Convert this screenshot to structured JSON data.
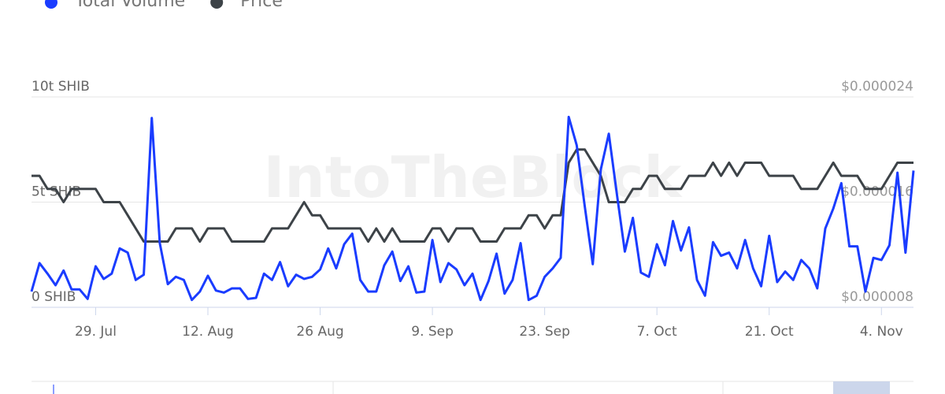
{
  "chart_data": {
    "type": "line",
    "watermark": "IntoTheBlock",
    "categories": [
      null,
      null,
      null,
      null,
      null,
      null,
      null,
      null,
      "29. Jul",
      null,
      null,
      null,
      null,
      null,
      null,
      null,
      null,
      null,
      null,
      null,
      null,
      null,
      "12. Aug",
      null,
      null,
      null,
      null,
      null,
      null,
      null,
      null,
      null,
      null,
      null,
      null,
      null,
      "26 Aug",
      null,
      null,
      null,
      null,
      null,
      null,
      null,
      null,
      null,
      null,
      null,
      null,
      null,
      "9. Sep",
      null,
      null,
      null,
      null,
      null,
      null,
      null,
      null,
      null,
      null,
      null,
      null,
      null,
      "23. Sep",
      null,
      null,
      null,
      null,
      null,
      null,
      null,
      null,
      null,
      null,
      null,
      null,
      null,
      "7. Oct",
      null,
      null,
      null,
      null,
      null,
      null,
      null,
      null,
      null,
      null,
      null,
      null,
      null,
      "21. Oct",
      null,
      null,
      null,
      null,
      null,
      null,
      null,
      null,
      null,
      null,
      null,
      null,
      null,
      "4. Nov",
      null,
      null,
      null,
      null
    ],
    "series": [
      {
        "name": "Total Volume",
        "color": "#1a3cff",
        "values": [
          0.75,
          2.1,
          1.6,
          1.05,
          1.75,
          0.85,
          0.85,
          0.4,
          1.95,
          1.35,
          1.6,
          2.8,
          2.6,
          1.3,
          1.55,
          9.0,
          3.05,
          1.1,
          1.45,
          1.3,
          0.35,
          0.75,
          1.5,
          0.8,
          0.7,
          0.9,
          0.9,
          0.4,
          0.45,
          1.6,
          1.3,
          2.15,
          1.0,
          1.55,
          1.35,
          1.45,
          1.8,
          2.8,
          1.85,
          3.0,
          3.5,
          1.3,
          0.75,
          0.75,
          2.0,
          2.65,
          1.25,
          1.95,
          0.7,
          0.75,
          3.2,
          1.2,
          2.1,
          1.8,
          1.05,
          1.6,
          0.35,
          1.25,
          2.55,
          0.65,
          1.3,
          3.05,
          0.35,
          0.55,
          1.45,
          1.85,
          2.35,
          9.05,
          7.7,
          4.8,
          2.05,
          6.55,
          8.25,
          5.4,
          2.65,
          4.25,
          1.65,
          1.45,
          3.0,
          2.0,
          4.1,
          2.7,
          3.8,
          1.3,
          0.55,
          3.1,
          2.45,
          2.6,
          1.85,
          3.2,
          1.85,
          1.0,
          3.4,
          1.2,
          1.7,
          1.3,
          2.25,
          1.85,
          0.9,
          3.75,
          4.7,
          5.9,
          2.9,
          2.9,
          0.75,
          2.35,
          2.25,
          2.95,
          6.4,
          2.6,
          6.5
        ]
      },
      {
        "name": "Price",
        "color": "#3d4348",
        "axis": "y2",
        "values": [
          1.8e-05,
          1.8e-05,
          1.7e-05,
          1.7e-05,
          1.6e-05,
          1.7e-05,
          1.7e-05,
          1.7e-05,
          1.7e-05,
          1.6e-05,
          1.6e-05,
          1.6e-05,
          1.5e-05,
          1.4e-05,
          1.3e-05,
          1.3e-05,
          1.3e-05,
          1.3e-05,
          1.4e-05,
          1.4e-05,
          1.4e-05,
          1.3e-05,
          1.4e-05,
          1.4e-05,
          1.4e-05,
          1.3e-05,
          1.3e-05,
          1.3e-05,
          1.3e-05,
          1.3e-05,
          1.4e-05,
          1.4e-05,
          1.4e-05,
          1.5e-05,
          1.6e-05,
          1.5e-05,
          1.5e-05,
          1.4e-05,
          1.4e-05,
          1.4e-05,
          1.4e-05,
          1.4e-05,
          1.3e-05,
          1.4e-05,
          1.3e-05,
          1.4e-05,
          1.3e-05,
          1.3e-05,
          1.3e-05,
          1.3e-05,
          1.4e-05,
          1.4e-05,
          1.3e-05,
          1.4e-05,
          1.4e-05,
          1.4e-05,
          1.3e-05,
          1.3e-05,
          1.3e-05,
          1.4e-05,
          1.4e-05,
          1.4e-05,
          1.5e-05,
          1.5e-05,
          1.4e-05,
          1.5e-05,
          1.5e-05,
          1.9e-05,
          2e-05,
          2e-05,
          1.9e-05,
          1.8e-05,
          1.6e-05,
          1.6e-05,
          1.6e-05,
          1.7e-05,
          1.7e-05,
          1.8e-05,
          1.8e-05,
          1.7e-05,
          1.7e-05,
          1.7e-05,
          1.8e-05,
          1.8e-05,
          1.8e-05,
          1.9e-05,
          1.8e-05,
          1.9e-05,
          1.8e-05,
          1.9e-05,
          1.9e-05,
          1.9e-05,
          1.8e-05,
          1.8e-05,
          1.8e-05,
          1.8e-05,
          1.7e-05,
          1.7e-05,
          1.7e-05,
          1.8e-05,
          1.9e-05,
          1.8e-05,
          1.8e-05,
          1.8e-05,
          1.7e-05,
          1.7e-05,
          1.7e-05,
          1.8e-05,
          1.9e-05,
          1.9e-05,
          1.9e-05
        ]
      }
    ],
    "ylim": [
      0,
      10
    ],
    "yticks": [
      {
        "value": 0,
        "label": "0 SHIB"
      },
      {
        "value": 5,
        "label": "5t SHIB"
      },
      {
        "value": 10,
        "label": "10t SHIB"
      }
    ],
    "y2lim": [
      8e-06,
      2.4e-05
    ],
    "y2ticks": [
      {
        "value": 8e-06,
        "label": "$0.000008"
      },
      {
        "value": 1.6e-05,
        "label": "$0.000016"
      },
      {
        "value": 2.4e-05,
        "label": "$0.000024"
      }
    ],
    "grid": true
  }
}
